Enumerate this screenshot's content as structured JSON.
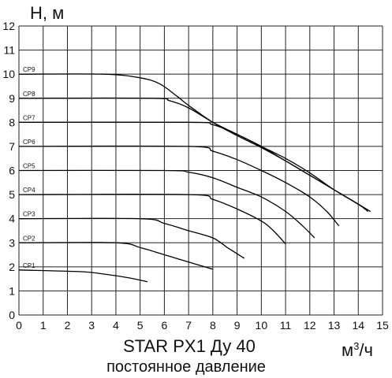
{
  "chart_data": {
    "type": "line",
    "title": "STAR PX1 Ду 40",
    "subtitle": "постоянное давление",
    "ylabel": "H, м",
    "xlabel_base": "м",
    "xlabel_sup": "3",
    "xlabel_tail": "/ч",
    "xlim": [
      0,
      15
    ],
    "ylim": [
      0,
      12
    ],
    "x_ticks": [
      0,
      1,
      2,
      3,
      4,
      5,
      6,
      7,
      8,
      9,
      10,
      11,
      12,
      13,
      14,
      15
    ],
    "y_ticks": [
      0,
      1,
      2,
      3,
      4,
      5,
      6,
      7,
      8,
      9,
      10,
      11,
      12
    ],
    "grid": true,
    "series": [
      {
        "name": "CP1",
        "points": [
          [
            0,
            1.87
          ],
          [
            2.5,
            1.8
          ],
          [
            3.5,
            1.7
          ],
          [
            4.5,
            1.55
          ],
          [
            5.3,
            1.38
          ]
        ]
      },
      {
        "name": "CP2",
        "points": [
          [
            0,
            3.0
          ],
          [
            4.0,
            3.0
          ],
          [
            5.0,
            2.8
          ],
          [
            6.0,
            2.5
          ],
          [
            7.0,
            2.2
          ],
          [
            8.0,
            1.9
          ]
        ]
      },
      {
        "name": "CP3",
        "points": [
          [
            0,
            4.0
          ],
          [
            5.0,
            4.0
          ],
          [
            6.0,
            3.8
          ],
          [
            7.0,
            3.5
          ],
          [
            8.0,
            3.2
          ],
          [
            8.6,
            2.8
          ],
          [
            9.3,
            2.35
          ]
        ]
      },
      {
        "name": "CP4",
        "points": [
          [
            0,
            5.0
          ],
          [
            7.0,
            5.0
          ],
          [
            8.0,
            4.8
          ],
          [
            9.0,
            4.4
          ],
          [
            10.0,
            3.9
          ],
          [
            10.5,
            3.5
          ],
          [
            11.0,
            2.95
          ]
        ]
      },
      {
        "name": "CP5",
        "points": [
          [
            0,
            6.0
          ],
          [
            6.0,
            6.0
          ],
          [
            7.0,
            5.93
          ],
          [
            8.0,
            5.7
          ],
          [
            9.0,
            5.3
          ],
          [
            10.0,
            4.9
          ],
          [
            11.0,
            4.3
          ],
          [
            11.7,
            3.7
          ],
          [
            12.2,
            3.2
          ]
        ]
      },
      {
        "name": "CP6",
        "points": [
          [
            0,
            7.0
          ],
          [
            7.0,
            7.0
          ],
          [
            8.0,
            6.8
          ],
          [
            9.0,
            6.45
          ],
          [
            10.0,
            6.0
          ],
          [
            11.0,
            5.5
          ],
          [
            12.0,
            4.9
          ],
          [
            12.7,
            4.3
          ],
          [
            13.2,
            3.7
          ]
        ]
      },
      {
        "name": "CP7",
        "points": [
          [
            0,
            8.0
          ],
          [
            7.0,
            8.0
          ],
          [
            8.0,
            7.9
          ],
          [
            9.0,
            7.5
          ],
          [
            10.0,
            7.0
          ],
          [
            11.0,
            6.5
          ],
          [
            12.0,
            5.9
          ],
          [
            13.0,
            5.2
          ],
          [
            14.0,
            4.6
          ],
          [
            14.4,
            4.3
          ]
        ]
      },
      {
        "name": "CP8",
        "points": [
          [
            0,
            9.0
          ],
          [
            5.5,
            9.0
          ],
          [
            6.2,
            8.9
          ],
          [
            7.0,
            8.6
          ],
          [
            8.0,
            8.0
          ],
          [
            9.0,
            7.5
          ],
          [
            10.0,
            7.0
          ],
          [
            11.0,
            6.4
          ],
          [
            12.0,
            5.8
          ],
          [
            13.0,
            5.2
          ],
          [
            14.0,
            4.6
          ],
          [
            14.5,
            4.3
          ]
        ]
      },
      {
        "name": "CP9",
        "points": [
          [
            0,
            10.0
          ],
          [
            3.5,
            10.0
          ],
          [
            5.0,
            9.85
          ],
          [
            5.8,
            9.6
          ],
          [
            6.5,
            9.1
          ],
          [
            7.0,
            8.7
          ],
          [
            8.0,
            8.0
          ],
          [
            9.0,
            7.45
          ],
          [
            10.0,
            6.95
          ],
          [
            11.0,
            6.4
          ],
          [
            12.0,
            5.8
          ],
          [
            13.0,
            5.2
          ],
          [
            14.0,
            4.6
          ],
          [
            14.5,
            4.3
          ]
        ]
      }
    ]
  }
}
